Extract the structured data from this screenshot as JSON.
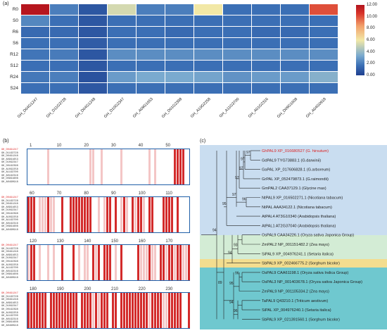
{
  "panels": {
    "a": "(a)",
    "b": "(b)",
    "c": "(c)"
  },
  "heatmap": {
    "rows": [
      "R0",
      "S0",
      "R6",
      "S6",
      "R12",
      "S12",
      "R24",
      "S24"
    ],
    "columns": [
      "GH_D04G1247",
      "GH_D11G3728",
      "GH_D04G1248",
      "GH_D10G2347",
      "GH_A09G1653",
      "GH_D01G2398",
      "GH_A10G2258",
      "GH_A11G3700",
      "GH_A01G2316",
      "GH_D09G1608",
      "GH_A04G0918"
    ],
    "colorbar_ticks": [
      "12.00",
      "10.00",
      "8.00",
      "6.00",
      "4.00",
      "2.00",
      "0.00"
    ],
    "cmap": [
      "#1f3f8f",
      "#3b6fb5",
      "#7aaacf",
      "#f2e8a6",
      "#f2a16b",
      "#d8342a",
      "#b2131d"
    ]
  },
  "chart_data": {
    "type": "heatmap",
    "x": [
      "GH_D04G1247",
      "GH_D11G3728",
      "GH_D04G1248",
      "GH_D10G2347",
      "GH_A09G1653",
      "GH_D01G2398",
      "GH_A10G2258",
      "GH_A11G3700",
      "GH_A01G2316",
      "GH_D09G1608",
      "GH_A04G0918"
    ],
    "y": [
      "R0",
      "S0",
      "R6",
      "S6",
      "R12",
      "S12",
      "R24",
      "S24"
    ],
    "values": [
      [
        11.8,
        2.5,
        1.0,
        5.5,
        2.5,
        2.5,
        6.0,
        2.0,
        2.0,
        2.0,
        9.5
      ],
      [
        2.8,
        2.0,
        1.0,
        2.0,
        2.0,
        2.0,
        2.0,
        2.0,
        2.0,
        2.0,
        2.0
      ],
      [
        1.8,
        1.8,
        1.0,
        2.0,
        2.0,
        1.8,
        2.0,
        2.0,
        1.8,
        1.8,
        2.0
      ],
      [
        2.0,
        2.0,
        1.2,
        2.0,
        2.0,
        2.0,
        2.0,
        2.0,
        2.0,
        2.0,
        2.0
      ],
      [
        2.2,
        2.4,
        1.0,
        3.0,
        3.0,
        3.0,
        3.0,
        3.0,
        3.0,
        3.0,
        3.0
      ],
      [
        2.0,
        2.0,
        1.0,
        2.0,
        2.0,
        2.0,
        2.0,
        2.0,
        2.0,
        2.0,
        2.0
      ],
      [
        2.3,
        2.5,
        0.8,
        3.5,
        4.0,
        4.0,
        3.8,
        3.2,
        3.5,
        3.5,
        4.2
      ],
      [
        2.0,
        2.0,
        1.0,
        2.0,
        2.0,
        2.0,
        2.0,
        2.0,
        2.0,
        2.0,
        2.0
      ]
    ],
    "zlim": [
      0,
      12
    ]
  },
  "alignment": {
    "sequences": [
      "GH_D04G1247",
      "GH_D11G3728",
      "GH_D04G1248",
      "GH_A09G1653",
      "GH_D10G2347",
      "GH_D01G2398",
      "GH_A10G2258",
      "GH_A11G3700",
      "GH_A01G2316",
      "GH_D09G1608",
      "GH_A04G0918"
    ],
    "blocks": [
      {
        "ruler": [
          "1",
          "10",
          "20",
          "30",
          "40",
          "50"
        ]
      },
      {
        "ruler": [
          "60",
          "70",
          "80",
          "90",
          "100",
          "110"
        ]
      },
      {
        "ruler": [
          "120",
          "130",
          "140",
          "150",
          "160",
          "170"
        ]
      },
      {
        "ruler": [
          "180",
          "190",
          "200",
          "210",
          "220",
          "230"
        ]
      }
    ]
  },
  "tree": {
    "leaves": [
      {
        "text": "GhPAL9   XP_016680527 (G. hirsutum)",
        "highlight": true
      },
      {
        "text": "GdPAL9   TYG73883.1 (G.darwinii)"
      },
      {
        "text": "GaPAL   XP_017606828.1 (G.arboreum)"
      },
      {
        "text": "GrPAL   XP_052479873.1 (G.raimondii)"
      },
      {
        "text": "GmPAL2  CAA37129.1 (Glycine max)"
      },
      {
        "text": "NtPAL9   XP_016502271.1 (Nicotiana tabacum)"
      },
      {
        "text": "NtPAL    AAA34122.1 (Nicotiana tabacum)"
      },
      {
        "text": "AtPAL4   AT3G10340 (Arabidopsis thaliana)"
      },
      {
        "text": "AtPAL1   AT2G37040 (Arabidopsis thaliana)"
      },
      {
        "text": "OsPAL9  CAA34226.1 (Oryza sativa Japonica Group)"
      },
      {
        "text": "ZmPAL2  NP_001151482.2 (Zea mays)"
      },
      {
        "text": "SiPAL9  XP_004976241.1 (Setaria italica)"
      },
      {
        "text": "SbPAL9  XP_002466775.2 (Sorghum bicolor)"
      },
      {
        "text": "OsPAL9  CAA61198.1 (Oryza sativa Indica Group)"
      },
      {
        "text": "OsPAL3  NP_001403678.1 (Oryza sativa Japonica Group)"
      },
      {
        "text": "ZmPAL9  NP_001105334.2 (Zea mays)"
      },
      {
        "text": "TaPAL9  Q43210.1 (Triticum aestivum)"
      },
      {
        "text": "SiPAL   XP_004976240.1 (Setaria italica)"
      },
      {
        "text": "SbPAL9  XP_021391560.1 (Sorghum bicolor)"
      }
    ],
    "bootstrap": [
      "97",
      "97",
      "97",
      "97",
      "96",
      "97",
      "95",
      "94",
      "93",
      "94",
      "89",
      "96",
      "95",
      "94",
      "96"
    ]
  }
}
